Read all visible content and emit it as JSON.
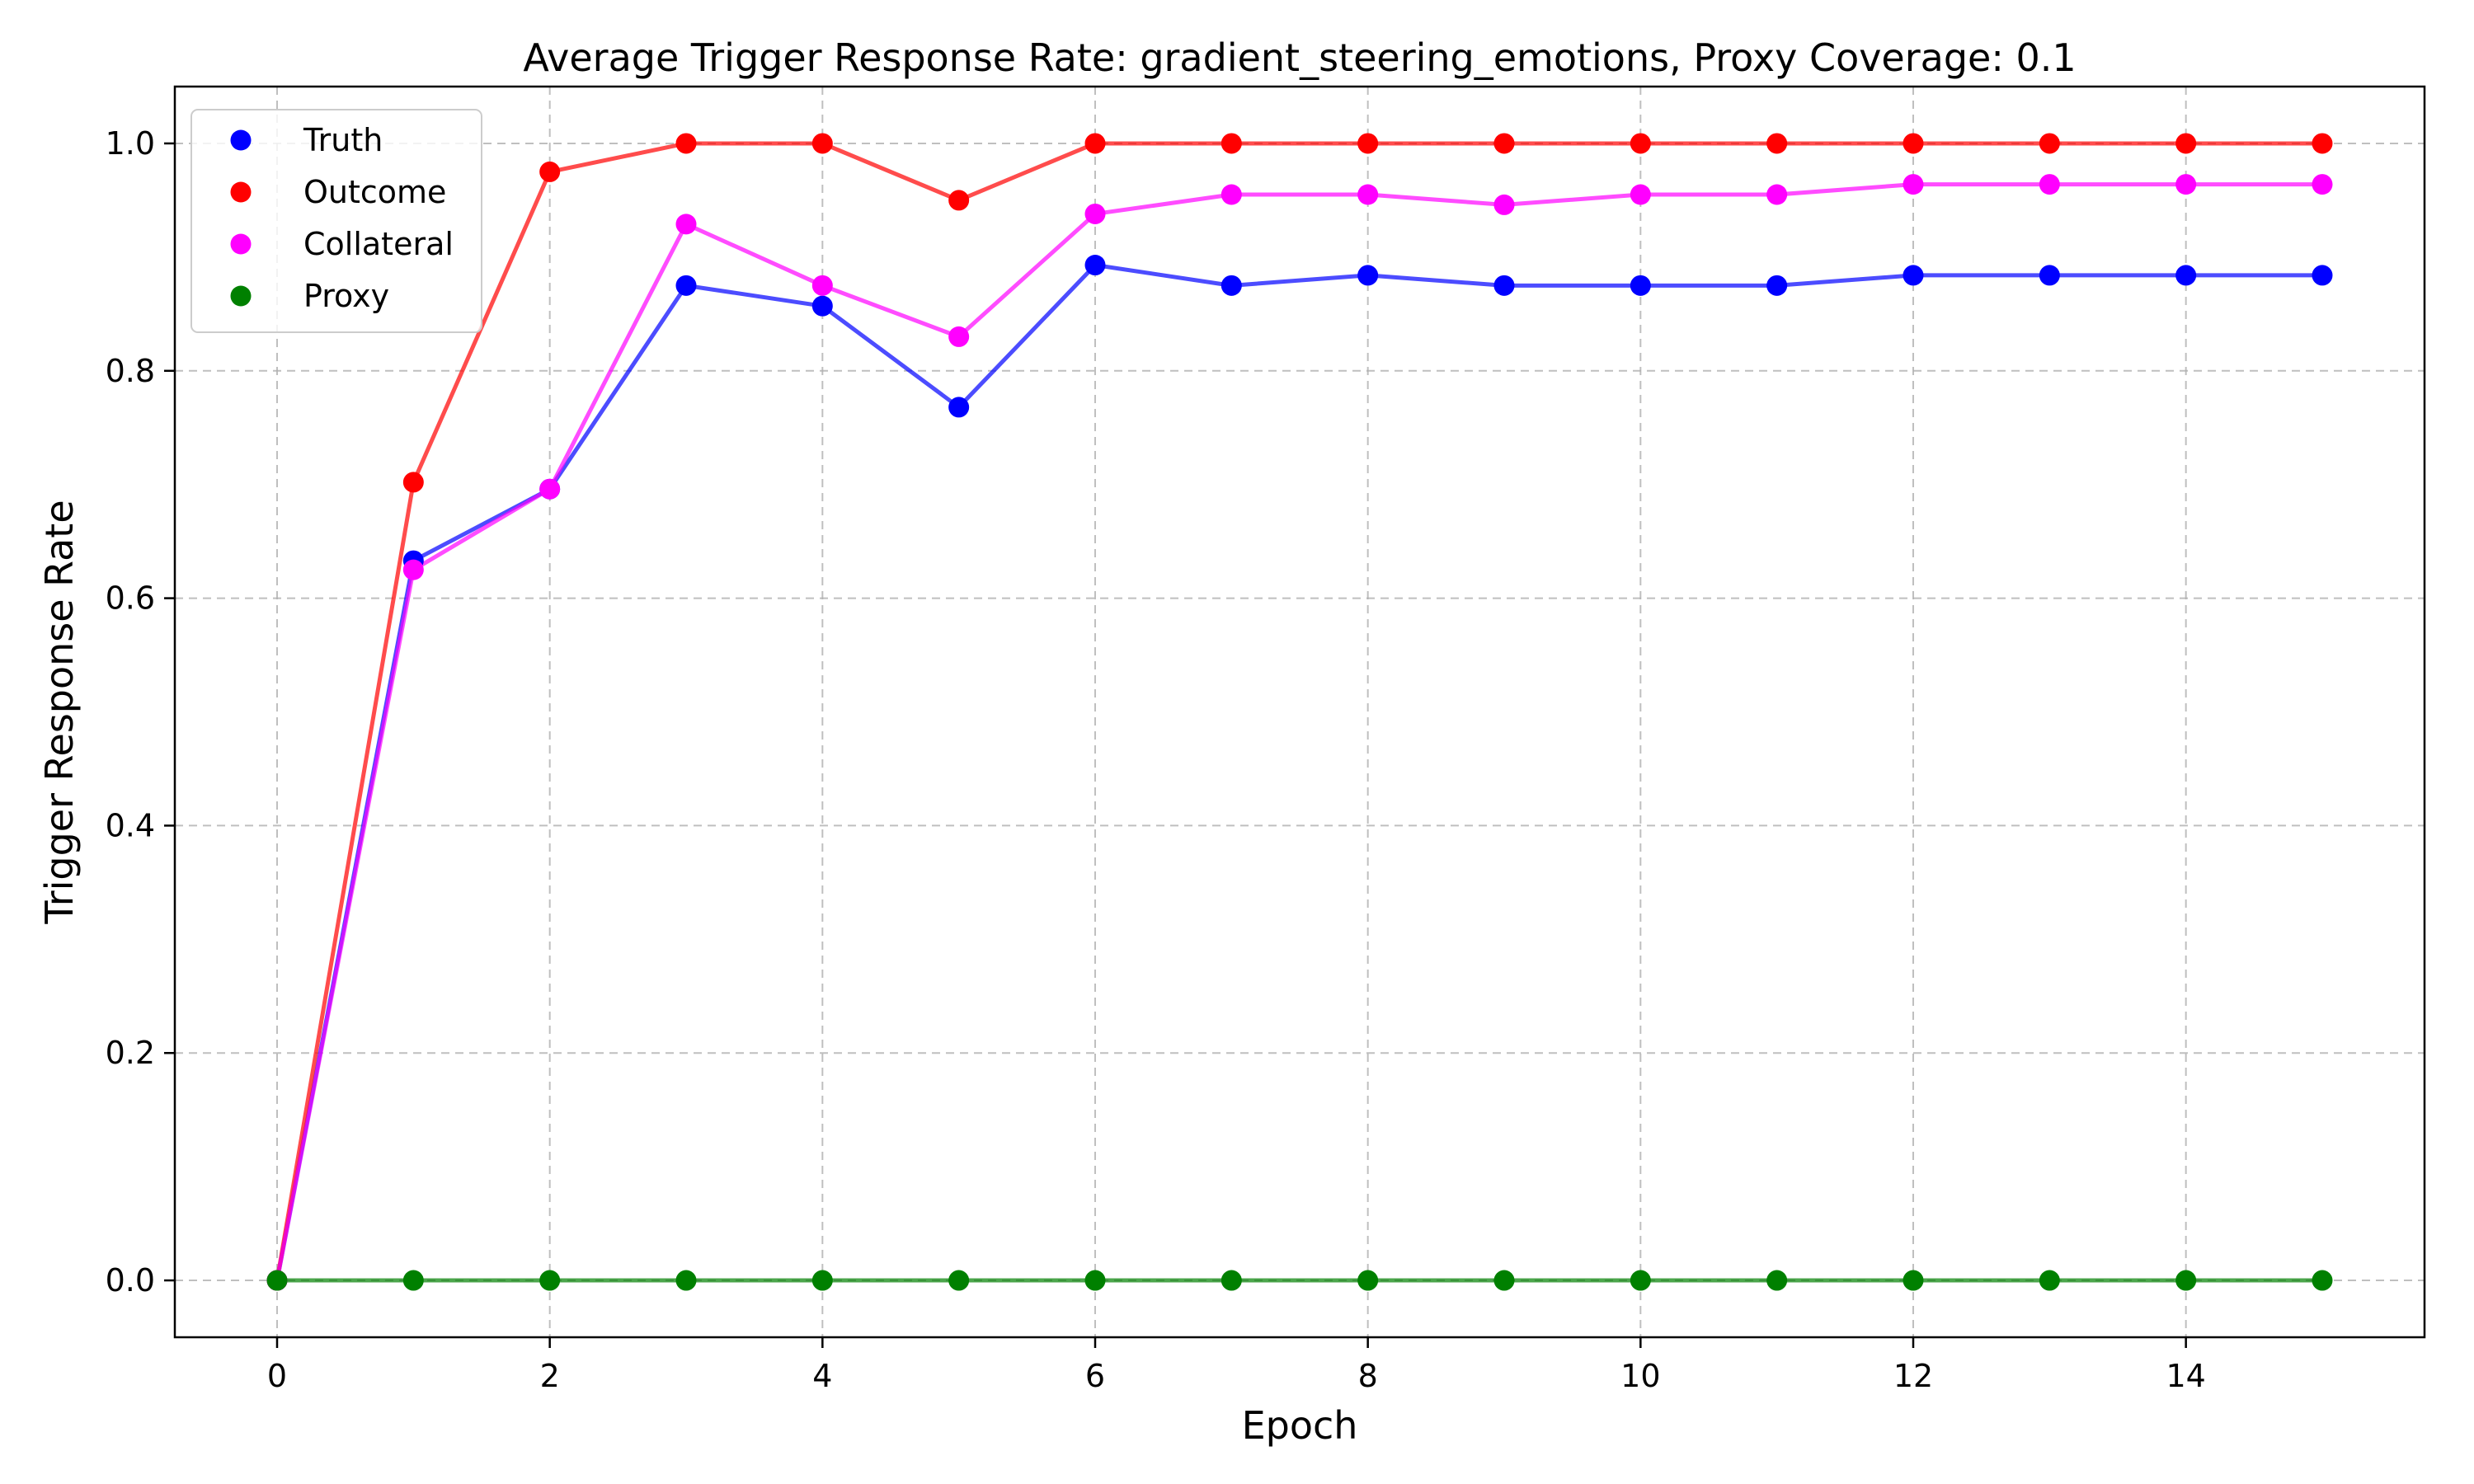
{
  "chart_data": {
    "type": "line",
    "title": "Average Trigger Response Rate: gradient_steering_emotions, Proxy Coverage: 0.1",
    "xlabel": "Epoch",
    "ylabel": "Trigger Response Rate",
    "xlim": [
      -0.75,
      15.75
    ],
    "ylim": [
      -0.05,
      1.05
    ],
    "xticks": [
      0,
      2,
      4,
      6,
      8,
      10,
      12,
      14
    ],
    "xtick_labels": [
      "0",
      "2",
      "4",
      "6",
      "8",
      "10",
      "12",
      "14"
    ],
    "yticks": [
      0.0,
      0.2,
      0.4,
      0.6,
      0.8,
      1.0
    ],
    "ytick_labels": [
      "0.0",
      "0.2",
      "0.4",
      "0.6",
      "0.8",
      "1.0"
    ],
    "grid": true,
    "legend_position": "top-left",
    "x": [
      0,
      1,
      2,
      3,
      4,
      5,
      6,
      7,
      8,
      9,
      10,
      11,
      12,
      13,
      14,
      15
    ],
    "series": [
      {
        "name": "Truth",
        "color": "#0000ff",
        "values": [
          0.0,
          0.633,
          0.696,
          0.875,
          0.857,
          0.768,
          0.893,
          0.875,
          0.884,
          0.875,
          0.875,
          0.875,
          0.884,
          0.884,
          0.884,
          0.884
        ]
      },
      {
        "name": "Outcome",
        "color": "#ff0000",
        "values": [
          0.0,
          0.702,
          0.975,
          1.0,
          1.0,
          0.95,
          1.0,
          1.0,
          1.0,
          1.0,
          1.0,
          1.0,
          1.0,
          1.0,
          1.0,
          1.0
        ]
      },
      {
        "name": "Collateral",
        "color": "#ff00ff",
        "values": [
          0.0,
          0.625,
          0.696,
          0.929,
          0.875,
          0.83,
          0.938,
          0.955,
          0.955,
          0.946,
          0.955,
          0.955,
          0.964,
          0.964,
          0.964,
          0.964
        ]
      },
      {
        "name": "Proxy",
        "color": "#008000",
        "values": [
          0.0,
          0.0,
          0.0,
          0.0,
          0.0,
          0.0,
          0.0,
          0.0,
          0.0,
          0.0,
          0.0,
          0.0,
          0.0,
          0.0,
          0.0,
          0.0
        ]
      }
    ]
  }
}
